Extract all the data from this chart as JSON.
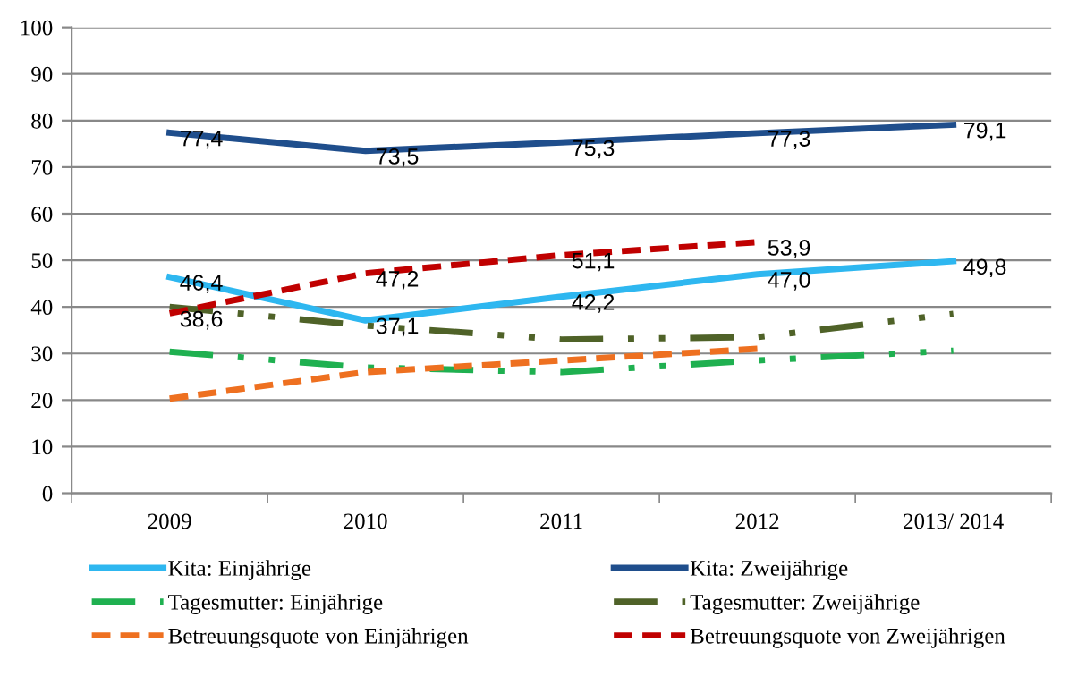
{
  "chart_data": {
    "type": "line",
    "categories": [
      "2009",
      "2010",
      "2011",
      "2012",
      "2013/ 2014"
    ],
    "ylim": [
      0,
      100
    ],
    "yticks": [
      0,
      10,
      20,
      30,
      40,
      50,
      60,
      70,
      80,
      90,
      100
    ],
    "grid": "y",
    "legend": "bottom",
    "marker": "none",
    "series": [
      {
        "name": "Kita: Einjährige",
        "color": "#2eb7f0",
        "line_style": "solid",
        "values": [
          46.4,
          37.1,
          42.2,
          47.0,
          49.8
        ],
        "value_labels": [
          "46,4",
          "37,1",
          "42,2",
          "47,0",
          "49,8"
        ]
      },
      {
        "name": "Tagesmutter: Einjährige",
        "color": "#1fb050",
        "line_style": "dotted",
        "values": [
          30.4,
          27.0,
          26.0,
          28.5,
          30.6
        ]
      },
      {
        "name": "Betreuungsquote von Einjährigen",
        "color": "#ee7020",
        "line_style": "dashed",
        "values": [
          20.3,
          26.0,
          28.5,
          31.0,
          null
        ]
      },
      {
        "name": "Kita: Zweijährige",
        "color": "#1f4e8c",
        "line_style": "solid",
        "values": [
          77.4,
          73.5,
          75.3,
          77.3,
          79.1
        ],
        "value_labels": [
          "77,4",
          "73,5",
          "75,3",
          "77,3",
          "79,1"
        ]
      },
      {
        "name": "Tagesmutter: Zweijährige",
        "color": "#4f6228",
        "line_style": "dotted",
        "values": [
          40.0,
          36.0,
          33.0,
          33.5,
          38.5
        ]
      },
      {
        "name": "Betreuungsquote von Zweijährigen",
        "color": "#c00000",
        "line_style": "dashed",
        "values": [
          38.6,
          47.2,
          51.1,
          53.9,
          null
        ],
        "value_labels": [
          "38,6",
          "47,2",
          "51,1",
          "53,9",
          null
        ]
      }
    ]
  }
}
